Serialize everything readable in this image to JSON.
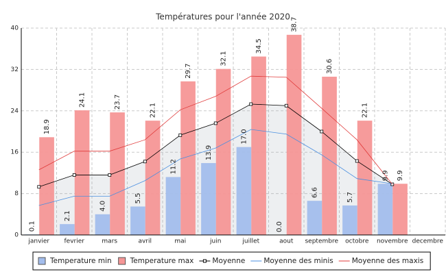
{
  "chart_data": {
    "type": "bar",
    "title": "Températures pour l'année 2020",
    "categories": [
      "janvier",
      "fevrier",
      "mars",
      "avril",
      "mai",
      "juin",
      "juillet",
      "aout",
      "septembre",
      "octobre",
      "novembre",
      "decembre"
    ],
    "series": [
      {
        "name": "Temperature min",
        "type": "bar",
        "color": "#a3bdec",
        "values": [
          0.1,
          2.1,
          4.0,
          5.5,
          11.2,
          13.9,
          17.0,
          0.0,
          6.6,
          5.7,
          9.9,
          null
        ],
        "value_labels": [
          "0.1",
          "2.1",
          "4.0",
          "5.5",
          "11.2",
          "13.9",
          "17.0",
          "0.0",
          "6.6",
          "5.7",
          "9.9",
          null
        ]
      },
      {
        "name": "Temperature max",
        "type": "bar",
        "color": "#f59696",
        "values": [
          18.9,
          24.1,
          23.7,
          22.1,
          29.7,
          32.1,
          34.5,
          38.7,
          30.6,
          22.1,
          9.9,
          null
        ],
        "value_labels": [
          "18.9",
          "24.1",
          "23.7",
          "22.1",
          "29.7",
          "32.1",
          "34.5",
          "38.7",
          "30.6",
          "22.1",
          "9.9",
          null
        ]
      },
      {
        "name": "Moyenne",
        "type": "line",
        "color": "#000000",
        "marker": "square",
        "area": true,
        "values": [
          9.3,
          11.6,
          11.6,
          14.2,
          19.3,
          21.6,
          25.3,
          25.0,
          20.0,
          14.3,
          9.8,
          null
        ]
      },
      {
        "name": "Moyenne des minis",
        "type": "line",
        "color": "#4a8fe0",
        "values": [
          5.7,
          7.5,
          7.5,
          10.5,
          14.7,
          16.8,
          20.4,
          19.5,
          15.5,
          10.9,
          9.9,
          null
        ]
      },
      {
        "name": "Moyenne des maxis",
        "type": "line",
        "color": "#e03a3a",
        "values": [
          12.6,
          16.2,
          16.2,
          18.4,
          24.2,
          26.8,
          30.7,
          30.5,
          24.5,
          18.4,
          9.8,
          null
        ]
      }
    ],
    "ylim": [
      0,
      40
    ],
    "yticks": [
      0,
      8,
      16,
      24,
      32,
      40
    ],
    "grid": true,
    "legend": "bottom"
  }
}
